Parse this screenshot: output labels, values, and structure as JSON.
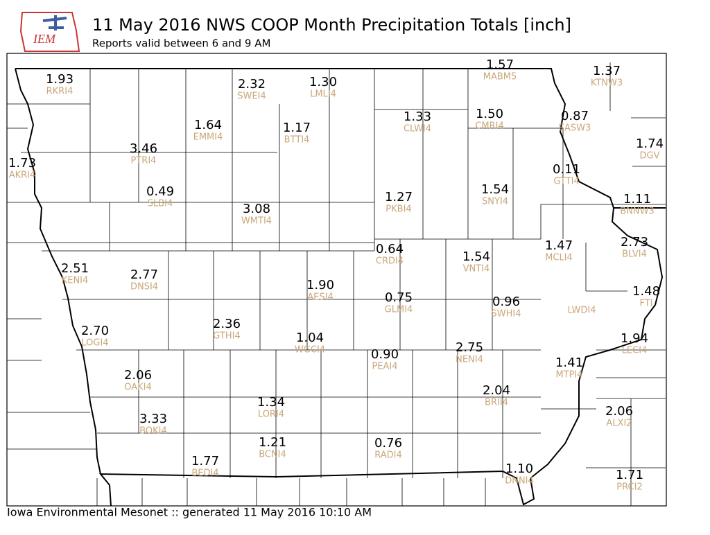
{
  "header": {
    "logo_text": "IEM",
    "title": "11 May 2016 NWS COOP Month Precipitation Totals [inch]",
    "subtitle": "Reports valid between 6 and 9 AM"
  },
  "stations": [
    {
      "value": "1.93",
      "id": "RKRI4"
    },
    {
      "value": "2.32",
      "id": "SWEI4"
    },
    {
      "value": "1.30",
      "id": "LMLI4"
    },
    {
      "value": "1.57",
      "id": "MABM5"
    },
    {
      "value": "1.37",
      "id": "KTNW3"
    },
    {
      "value": "1.33",
      "id": "CLWI4"
    },
    {
      "value": "1.50",
      "id": "CMRI4"
    },
    {
      "value": "0.87",
      "id": "EASW3"
    },
    {
      "value": "1.64",
      "id": "EMMI4"
    },
    {
      "value": "1.17",
      "id": "BTTI4"
    },
    {
      "value": "3.46",
      "id": "PTRI4"
    },
    {
      "value": "1.74",
      "id": "DGV"
    },
    {
      "value": "1.73",
      "id": "AKRI4"
    },
    {
      "value": "0.11",
      "id": "GTTI4"
    },
    {
      "value": "0.49",
      "id": "SLBI4"
    },
    {
      "value": "1.27",
      "id": "PKBI4"
    },
    {
      "value": "1.54",
      "id": "SNYI4"
    },
    {
      "value": "1.11",
      "id": "BNNW3"
    },
    {
      "value": "3.08",
      "id": "WMTI4"
    },
    {
      "value": "0.64",
      "id": "CRDI4"
    },
    {
      "value": "1.54",
      "id": "VNTI4"
    },
    {
      "value": "1.47",
      "id": "MCLI4"
    },
    {
      "value": "2.73",
      "id": "BLVI4"
    },
    {
      "value": "2.51",
      "id": "KENI4"
    },
    {
      "value": "2.77",
      "id": "DNSI4"
    },
    {
      "value": "1.90",
      "id": "AESI4"
    },
    {
      "value": "0.75",
      "id": "GLMI4"
    },
    {
      "value": "0.96",
      "id": "SWHI4"
    },
    {
      "id": "LWDI4"
    },
    {
      "value": "1.48",
      "id": "FTI"
    },
    {
      "value": "2.70",
      "id": "LOGI4"
    },
    {
      "value": "2.36",
      "id": "GTHI4"
    },
    {
      "value": "1.04",
      "id": "WGCI4"
    },
    {
      "value": "0.90",
      "id": "PEAI4"
    },
    {
      "value": "2.75",
      "id": "NENI4"
    },
    {
      "value": "1.94",
      "id": "LECI4"
    },
    {
      "value": "1.41",
      "id": "MTPI4"
    },
    {
      "value": "2.06",
      "id": "OAKI4"
    },
    {
      "value": "2.04",
      "id": "BRII4"
    },
    {
      "value": "1.34",
      "id": "LORI4"
    },
    {
      "value": "3.33",
      "id": "BOKI4"
    },
    {
      "value": "2.06",
      "id": "ALXI2"
    },
    {
      "value": "1.21",
      "id": "BCNI4"
    },
    {
      "value": "0.76",
      "id": "RADI4"
    },
    {
      "value": "1.77",
      "id": "BEDI4"
    },
    {
      "value": "1.10",
      "id": "DNNI4"
    },
    {
      "value": "1.71",
      "id": "PRCI2"
    }
  ],
  "footer": "Iowa Environmental Mesonet :: generated 11 May 2016 10:10 AM"
}
